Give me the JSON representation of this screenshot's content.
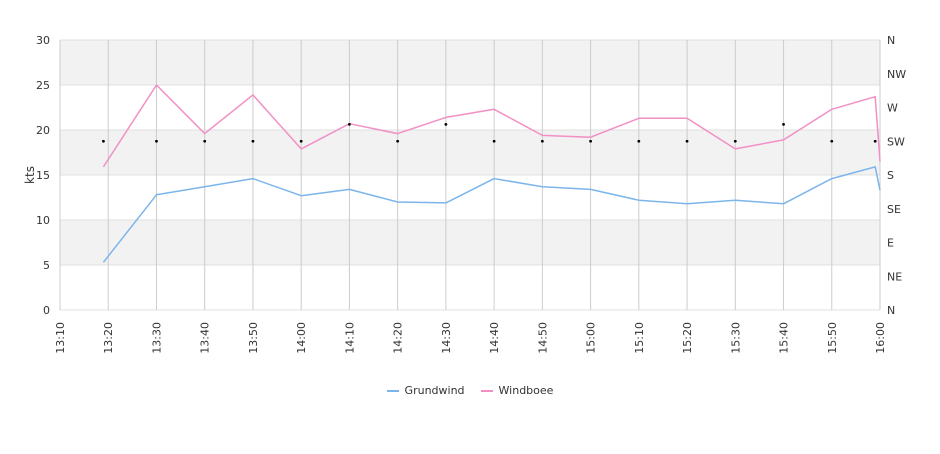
{
  "chart_data": {
    "type": "line",
    "x": [
      "13:10",
      "13:20",
      "13:30",
      "13:40",
      "13:50",
      "14:00",
      "14:10",
      "14:20",
      "14:30",
      "14:40",
      "14:50",
      "15:00",
      "15:10",
      "15:20",
      "15:30",
      "15:40",
      "15:50",
      "16:00"
    ],
    "ylabel": "kts",
    "ylim": [
      0,
      30
    ],
    "yticks": [
      0,
      5,
      10,
      15,
      20,
      25,
      30
    ],
    "y2ticks": [
      "N",
      "NE",
      "E",
      "SE",
      "S",
      "SW",
      "W",
      "NW",
      "N"
    ],
    "grid": true,
    "legend_position": "bottom-center",
    "series": [
      {
        "name": "Grundwind",
        "color": "#7cb5ec",
        "points": [
          {
            "t": "13:19",
            "v": 5.3
          },
          {
            "t": "13:30",
            "v": 12.8
          },
          {
            "t": "13:40",
            "v": 13.7
          },
          {
            "t": "13:50",
            "v": 14.6
          },
          {
            "t": "14:00",
            "v": 12.7
          },
          {
            "t": "14:10",
            "v": 13.4
          },
          {
            "t": "14:20",
            "v": 12.0
          },
          {
            "t": "14:30",
            "v": 11.9
          },
          {
            "t": "14:40",
            "v": 14.6
          },
          {
            "t": "14:50",
            "v": 13.7
          },
          {
            "t": "15:00",
            "v": 13.4
          },
          {
            "t": "15:10",
            "v": 12.2
          },
          {
            "t": "15:20",
            "v": 11.8
          },
          {
            "t": "15:30",
            "v": 12.2
          },
          {
            "t": "15:40",
            "v": 11.8
          },
          {
            "t": "15:50",
            "v": 14.6
          },
          {
            "t": "15:59",
            "v": 15.9
          },
          {
            "t": "16:00",
            "v": 13.3
          }
        ]
      },
      {
        "name": "Windboee",
        "color": "#f28fc4",
        "points": [
          {
            "t": "13:19",
            "v": 15.9
          },
          {
            "t": "13:30",
            "v": 25.0
          },
          {
            "t": "13:40",
            "v": 19.6
          },
          {
            "t": "13:50",
            "v": 23.9
          },
          {
            "t": "14:00",
            "v": 17.9
          },
          {
            "t": "14:10",
            "v": 20.7
          },
          {
            "t": "14:20",
            "v": 19.6
          },
          {
            "t": "14:30",
            "v": 21.4
          },
          {
            "t": "14:40",
            "v": 22.3
          },
          {
            "t": "14:50",
            "v": 19.4
          },
          {
            "t": "15:00",
            "v": 19.2
          },
          {
            "t": "15:10",
            "v": 21.3
          },
          {
            "t": "15:20",
            "v": 21.3
          },
          {
            "t": "15:30",
            "v": 17.9
          },
          {
            "t": "15:40",
            "v": 18.9
          },
          {
            "t": "15:50",
            "v": 22.3
          },
          {
            "t": "15:59",
            "v": 23.7
          },
          {
            "t": "16:00",
            "v": 16.5
          }
        ]
      }
    ],
    "direction_markers": [
      {
        "t": "13:19",
        "dir": "SW"
      },
      {
        "t": "13:30",
        "dir": "SW"
      },
      {
        "t": "13:40",
        "dir": "SW"
      },
      {
        "t": "13:50",
        "dir": "SW"
      },
      {
        "t": "14:00",
        "dir": "SW"
      },
      {
        "t": "14:10",
        "dir": "WSW"
      },
      {
        "t": "14:20",
        "dir": "SW"
      },
      {
        "t": "14:30",
        "dir": "WSW"
      },
      {
        "t": "14:40",
        "dir": "SW"
      },
      {
        "t": "14:50",
        "dir": "SW"
      },
      {
        "t": "15:00",
        "dir": "SW"
      },
      {
        "t": "15:10",
        "dir": "SW"
      },
      {
        "t": "15:20",
        "dir": "SW"
      },
      {
        "t": "15:30",
        "dir": "SW"
      },
      {
        "t": "15:40",
        "dir": "WSW"
      },
      {
        "t": "15:50",
        "dir": "SW"
      },
      {
        "t": "15:59",
        "dir": "SW"
      }
    ]
  }
}
